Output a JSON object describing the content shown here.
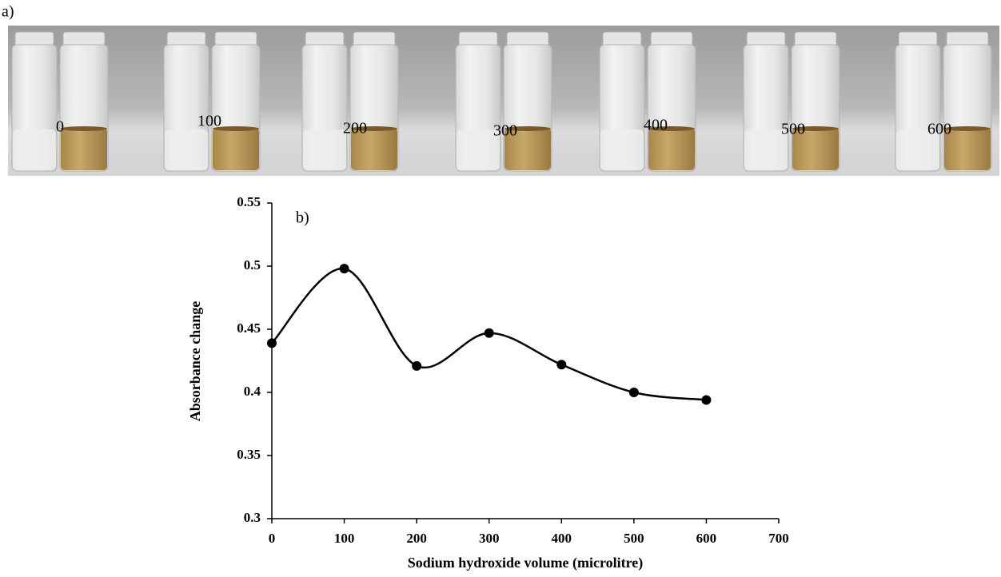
{
  "photo": {
    "label": "a)",
    "vial_labels": [
      0,
      100,
      200,
      300,
      400,
      500,
      600
    ]
  },
  "chart_data": {
    "type": "line",
    "annotation": "b)",
    "x_label": "Sodium hydroxide volume (microlitre)",
    "y_label": "Absorbance change",
    "x": [
      0,
      100,
      200,
      300,
      400,
      500,
      600
    ],
    "series": [
      {
        "color": "#000000",
        "values": [
          0.439,
          0.498,
          0.421,
          0.447,
          0.422,
          0.4,
          0.394
        ]
      }
    ],
    "xlim": [
      0,
      700
    ],
    "xticks": [
      0,
      100,
      200,
      300,
      400,
      500,
      600,
      700
    ],
    "ylim": [
      0.3,
      0.55
    ],
    "yticks": [
      0.3,
      0.35,
      0.4,
      0.45,
      0.5,
      0.55
    ],
    "smooth": true,
    "markers": true
  }
}
